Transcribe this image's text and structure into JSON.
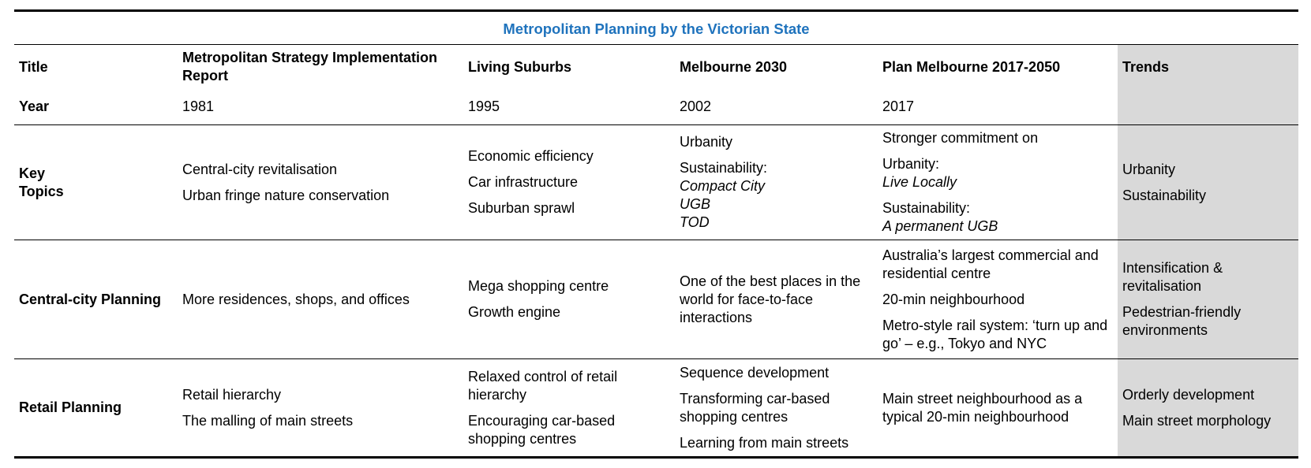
{
  "caption": "Metropolitan Planning by the Victorian State",
  "header": {
    "title_label": "Title",
    "year_label": "Year",
    "trends_label": "Trends",
    "plans": [
      {
        "title": "Metropolitan Strategy Implementation Report",
        "year": "1981"
      },
      {
        "title": "Living Suburbs",
        "year": "1995"
      },
      {
        "title": "Melbourne 2030",
        "year": "2002"
      },
      {
        "title": "Plan Melbourne 2017-2050",
        "year": "2017"
      }
    ]
  },
  "key_topics": {
    "label": "Key Topics",
    "c1": [
      "Central-city revitalisation",
      "Urban fringe nature conservation"
    ],
    "c2": [
      "Economic efficiency",
      "Car infrastructure",
      "Suburban sprawl"
    ],
    "c3": {
      "item1": "Urbanity",
      "item2_label": "Sustainability:",
      "item2_italic": [
        "Compact City",
        "UGB",
        "TOD"
      ]
    },
    "c4": {
      "item1": "Stronger commitment on",
      "item2_label": "Urbanity:",
      "item2_italic": "Live Locally",
      "item3_label": "Sustainability:",
      "item3_italic": "A permanent UGB"
    },
    "trends": [
      "Urbanity",
      "Sustainability"
    ]
  },
  "central_city": {
    "label": "Central-city Planning",
    "c1": [
      "More residences, shops, and offices"
    ],
    "c2": [
      "Mega shopping centre",
      "Growth engine"
    ],
    "c3": [
      "One of the best places in the world for face-to-face interactions"
    ],
    "c4": [
      "Australia’s largest commercial and residential centre",
      "20-min neighbourhood",
      "Metro-style rail system: ‘turn up and go’ – e.g., Tokyo and NYC"
    ],
    "trends": [
      "Intensification & revitalisation",
      "Pedestrian-friendly environments"
    ]
  },
  "retail": {
    "label": "Retail Planning",
    "c1": [
      "Retail hierarchy",
      "The malling of main streets"
    ],
    "c2": [
      "Relaxed control of retail hierarchy",
      "Encouraging car-based shopping centres"
    ],
    "c3": [
      "Sequence development",
      "Transforming car-based shopping centres",
      "Learning from main streets"
    ],
    "c4": [
      "Main street neighbourhood as a typical 20-min neighbourhood"
    ],
    "trends": [
      "Orderly development",
      "Main street morphology"
    ]
  }
}
